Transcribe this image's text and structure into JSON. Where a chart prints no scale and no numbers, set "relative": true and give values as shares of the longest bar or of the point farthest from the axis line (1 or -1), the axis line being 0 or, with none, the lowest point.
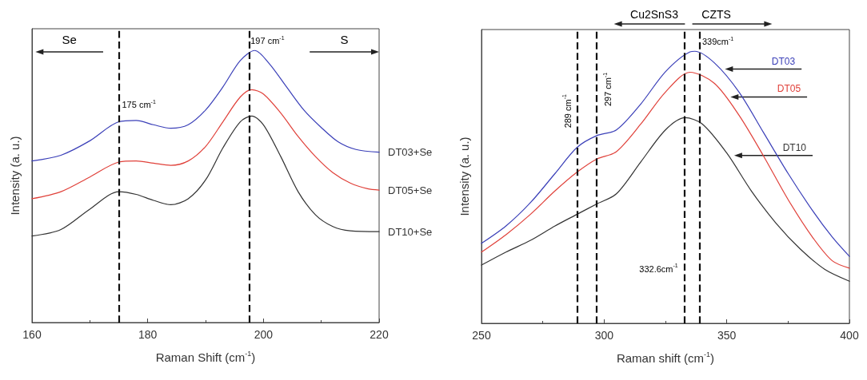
{
  "chart_data": [
    {
      "type": "line",
      "xlabel": "Raman Shift (cm$^{-1}$)",
      "ylabel": "Intensity (a. u.)",
      "relative": true,
      "xlim": [
        160,
        220
      ],
      "xticks": [
        160,
        180,
        200,
        220
      ],
      "grid": false,
      "legend": false,
      "tick_labels": "x",
      "marker": "none",
      "line_style": "solid",
      "annotations": [
        "Se",
        "S"
      ],
      "ref_lines": [
        {
          "axis": "x",
          "value": 175,
          "label": "175 cm$^{-1}$",
          "line_style": "dashed",
          "color": "#111111"
        },
        {
          "axis": "x",
          "value": 197.5,
          "label": "197 cm$^{-1}$",
          "line_style": "dashed",
          "color": "#111111"
        }
      ],
      "series": [
        {
          "name": "DT03+Se",
          "color": "#3a3fb8",
          "x": [
            160,
            165,
            170,
            175,
            178,
            181,
            184,
            187,
            190,
            193,
            196,
            198.5,
            201,
            204,
            207,
            210,
            213,
            216,
            220
          ],
          "values": [
            0.594,
            0.615,
            0.668,
            0.738,
            0.743,
            0.727,
            0.714,
            0.727,
            0.781,
            0.866,
            0.963,
            1.0,
            0.952,
            0.866,
            0.781,
            0.717,
            0.663,
            0.636,
            0.626
          ]
        },
        {
          "name": "DT05+Se",
          "color": "#e0413a",
          "x": [
            160,
            165,
            170,
            175,
            178,
            181,
            184,
            187,
            190,
            193,
            196,
            198,
            200,
            203,
            206,
            209,
            212,
            215,
            218,
            220
          ],
          "values": [
            0.455,
            0.481,
            0.535,
            0.59,
            0.594,
            0.586,
            0.578,
            0.594,
            0.647,
            0.738,
            0.829,
            0.856,
            0.84,
            0.77,
            0.684,
            0.61,
            0.551,
            0.513,
            0.492,
            0.487
          ]
        },
        {
          "name": "DT10+Se",
          "color": "#333333",
          "x": [
            160,
            165,
            170,
            175,
            178,
            181,
            184,
            187,
            190,
            193,
            196,
            198,
            200,
            203,
            206,
            209,
            212,
            215,
            220
          ],
          "values": [
            0.318,
            0.342,
            0.417,
            0.481,
            0.471,
            0.449,
            0.433,
            0.455,
            0.524,
            0.642,
            0.738,
            0.759,
            0.727,
            0.61,
            0.481,
            0.396,
            0.353,
            0.337,
            0.334
          ]
        }
      ]
    },
    {
      "type": "line",
      "xlabel": "Raman shift (cm$^{-1}$)",
      "ylabel": "Intensity (a. u.)",
      "relative": true,
      "xlim": [
        250,
        400
      ],
      "xticks": [
        250,
        300,
        350,
        400
      ],
      "grid": false,
      "legend": false,
      "tick_labels": "x",
      "marker": "none",
      "line_style": "solid",
      "annotations": [
        "Cu2SnS3",
        "CZTS"
      ],
      "ref_lines": [
        {
          "axis": "x",
          "value": 289,
          "label": "289 cm$^{-1}$",
          "line_style": "dashed",
          "color": "#111111"
        },
        {
          "axis": "x",
          "value": 297,
          "label": "297 cm$^{-1}$",
          "line_style": "dashed",
          "color": "#111111"
        },
        {
          "axis": "x",
          "value": 332.6,
          "label": "332.6cm$^{-1}$",
          "line_style": "dashed",
          "color": "#111111"
        },
        {
          "axis": "x",
          "value": 339,
          "label": "339cm$^{-1}$",
          "line_style": "dashed",
          "color": "#111111"
        }
      ],
      "series": [
        {
          "name": "DT03",
          "color": "#3a3fb8",
          "x": [
            250,
            260,
            270,
            280,
            289,
            297,
            305,
            315,
            325,
            335,
            337,
            345,
            355,
            365,
            375,
            385,
            393,
            400
          ],
          "values": [
            0.294,
            0.358,
            0.444,
            0.551,
            0.647,
            0.69,
            0.711,
            0.807,
            0.925,
            0.998,
            1.0,
            0.957,
            0.85,
            0.701,
            0.551,
            0.414,
            0.317,
            0.246
          ]
        },
        {
          "name": "DT05",
          "color": "#e0413a",
          "x": [
            250,
            260,
            270,
            280,
            289,
            297,
            305,
            315,
            325,
            335,
            345,
            355,
            365,
            375,
            385,
            393,
            400
          ],
          "values": [
            0.262,
            0.326,
            0.401,
            0.487,
            0.556,
            0.604,
            0.631,
            0.733,
            0.85,
            0.923,
            0.882,
            0.765,
            0.615,
            0.455,
            0.316,
            0.23,
            0.203
          ]
        },
        {
          "name": "DT10",
          "color": "#333333",
          "x": [
            250,
            260,
            270,
            280,
            289,
            297,
            305,
            315,
            325,
            333,
            340,
            350,
            360,
            370,
            380,
            390,
            400
          ],
          "values": [
            0.214,
            0.262,
            0.305,
            0.358,
            0.401,
            0.439,
            0.476,
            0.594,
            0.711,
            0.756,
            0.733,
            0.626,
            0.487,
            0.369,
            0.273,
            0.198,
            0.155
          ]
        }
      ]
    }
  ]
}
